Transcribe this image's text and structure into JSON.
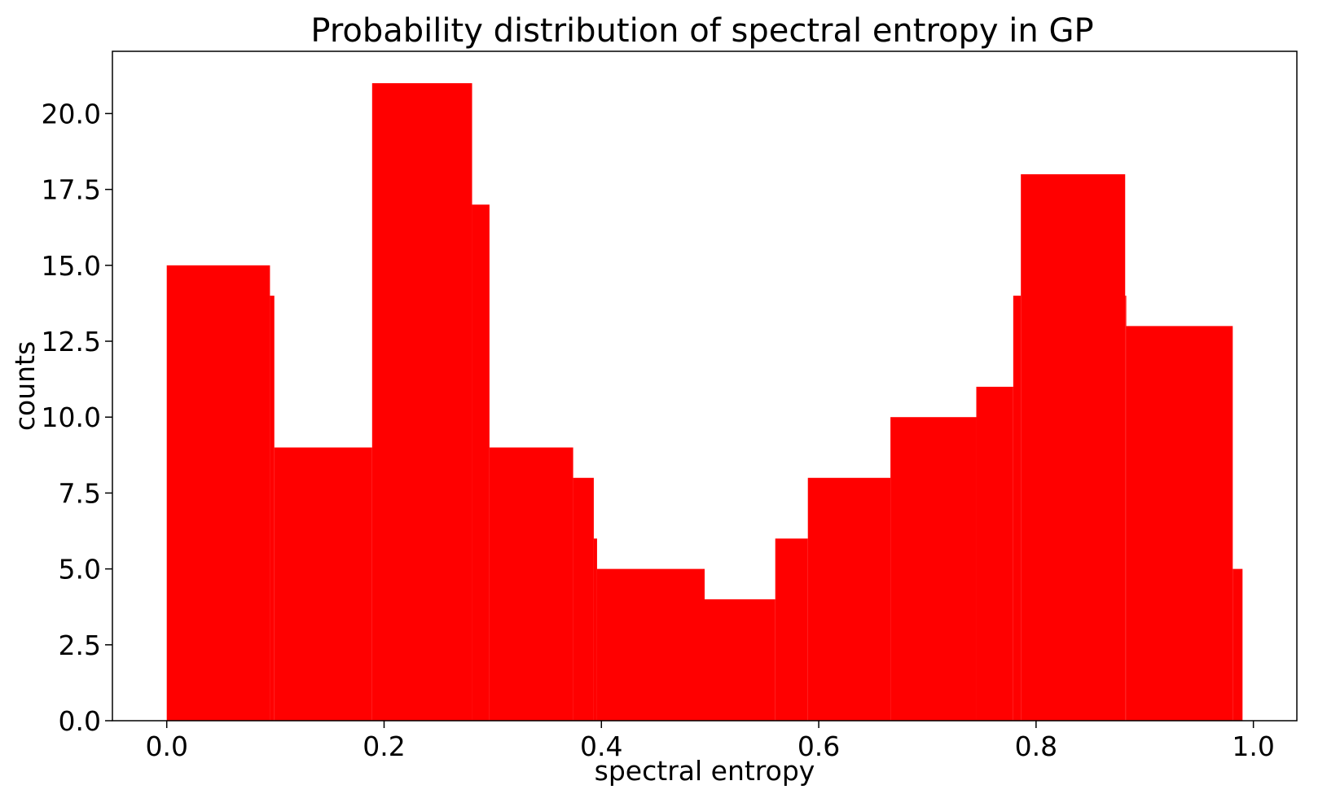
{
  "chart_data": {
    "type": "bar",
    "title": "Probability distribution of spectral entropy in GP",
    "xlabel": "spectral entropy",
    "ylabel": "counts",
    "xlim": [
      -0.05,
      1.04
    ],
    "ylim": [
      0,
      22.05
    ],
    "x_ticks": [
      0.0,
      0.2,
      0.4,
      0.6,
      0.8,
      1.0
    ],
    "x_tick_labels": [
      "0.0",
      "0.2",
      "0.4",
      "0.6",
      "0.8",
      "1.0"
    ],
    "y_ticks": [
      0.0,
      2.5,
      5.0,
      7.5,
      10.0,
      12.5,
      15.0,
      17.5,
      20.0
    ],
    "y_tick_labels": [
      "0.0",
      "2.5",
      "5.0",
      "7.5",
      "10.0",
      "12.5",
      "15.0",
      "17.5",
      "20.0"
    ],
    "grid": false,
    "bar_color": "#ff0000",
    "bins": [
      {
        "x_start": 0.0,
        "x_end": 0.095,
        "count": 15
      },
      {
        "x_start": 0.095,
        "x_end": 0.099,
        "count": 14
      },
      {
        "x_start": 0.099,
        "x_end": 0.189,
        "count": 9
      },
      {
        "x_start": 0.189,
        "x_end": 0.281,
        "count": 21
      },
      {
        "x_start": 0.281,
        "x_end": 0.297,
        "count": 17
      },
      {
        "x_start": 0.297,
        "x_end": 0.374,
        "count": 9
      },
      {
        "x_start": 0.374,
        "x_end": 0.393,
        "count": 8
      },
      {
        "x_start": 0.393,
        "x_end": 0.396,
        "count": 6
      },
      {
        "x_start": 0.396,
        "x_end": 0.495,
        "count": 5
      },
      {
        "x_start": 0.495,
        "x_end": 0.56,
        "count": 4
      },
      {
        "x_start": 0.56,
        "x_end": 0.59,
        "count": 6
      },
      {
        "x_start": 0.59,
        "x_end": 0.666,
        "count": 8
      },
      {
        "x_start": 0.666,
        "x_end": 0.745,
        "count": 10
      },
      {
        "x_start": 0.745,
        "x_end": 0.779,
        "count": 11
      },
      {
        "x_start": 0.779,
        "x_end": 0.786,
        "count": 14
      },
      {
        "x_start": 0.786,
        "x_end": 0.882,
        "count": 18
      },
      {
        "x_start": 0.882,
        "x_end": 0.883,
        "count": 14
      },
      {
        "x_start": 0.883,
        "x_end": 0.981,
        "count": 13
      },
      {
        "x_start": 0.981,
        "x_end": 0.99,
        "count": 5
      }
    ]
  }
}
